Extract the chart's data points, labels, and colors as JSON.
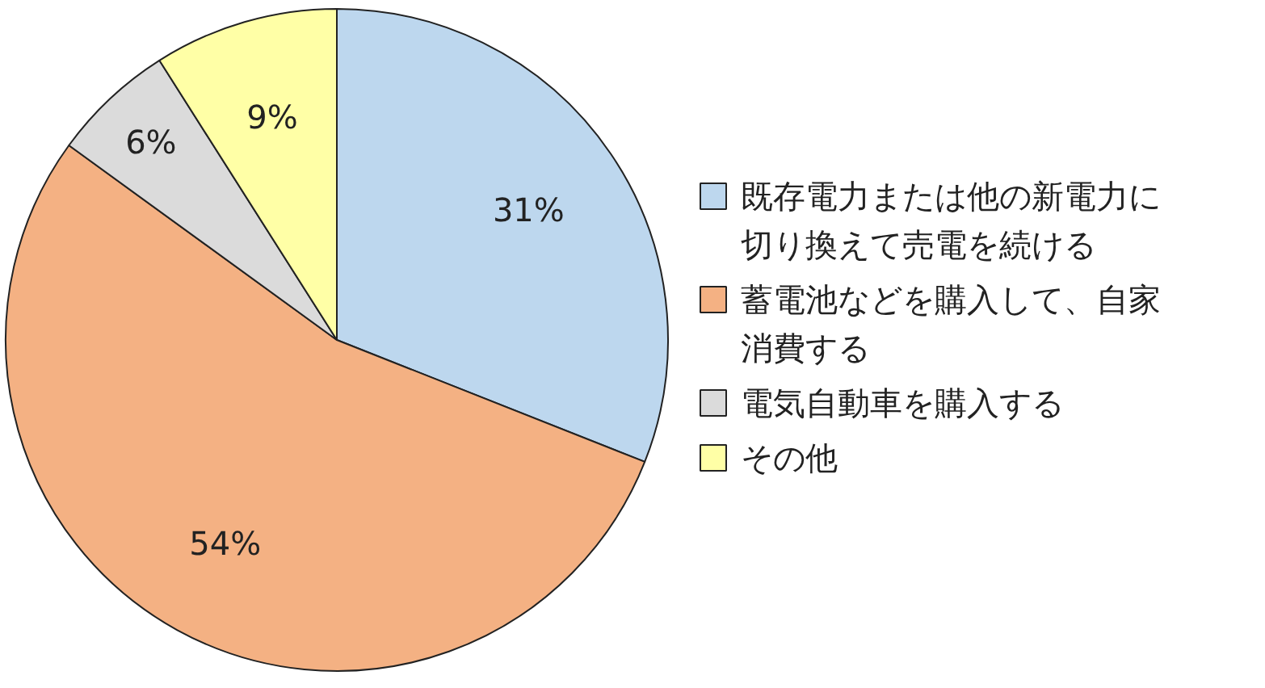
{
  "chart_data": {
    "type": "pie",
    "categories": [
      "既存電力または他の新電力に切り換えて売電を続ける",
      "蓄電池などを購入して、自家消費する",
      "電気自動車を購入する",
      "その他"
    ],
    "values": [
      31,
      54,
      6,
      9
    ],
    "colors": [
      "#bdd7ee",
      "#f4b183",
      "#dbdbdb",
      "#ffffa6"
    ],
    "value_labels": [
      "31%",
      "54%",
      "6%",
      "9%"
    ],
    "legend": "right"
  }
}
